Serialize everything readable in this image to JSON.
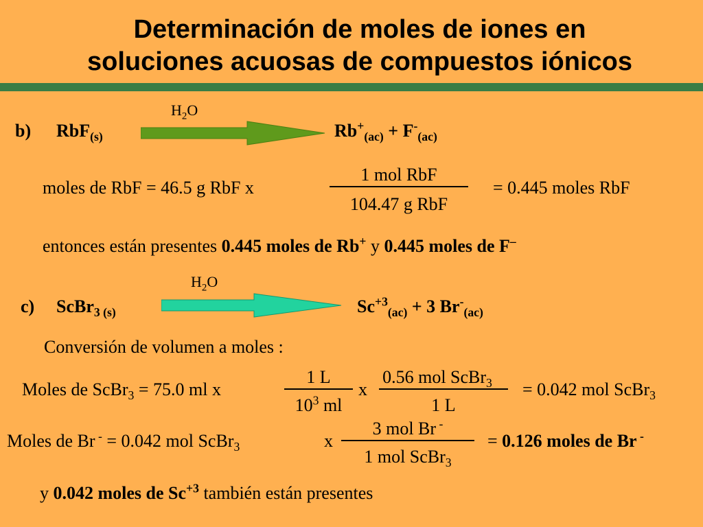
{
  "title": {
    "line1": "Determinación de moles de iones en",
    "line2": "soluciones acuosas de compuestos iónicos"
  },
  "colors": {
    "background": "#ffb050",
    "rule": "#3a7d45",
    "arrow_b": "#5f9a1c",
    "arrow_c": "#22d39e"
  },
  "part_b": {
    "label": "b)",
    "reactant": "RbF",
    "reactant_sub": "(s)",
    "solvent_main": "H",
    "solvent_sub": "2",
    "solvent_end": "O",
    "product1": "Rb",
    "product1_sup": "+",
    "product1_sub": "(ac)",
    "plus": "+ F",
    "product2_sup": "-",
    "product2_sub": "(ac)",
    "calc_left": "moles de RbF = 46.5 g RbF  x",
    "numerator": "1 mol RbF",
    "denominator": "104.47 g RbF",
    "result": "= 0.445 moles RbF",
    "present_pre": "entonces están presentes ",
    "present_b1": "0.445 moles de Rb",
    "present_sup1": "+",
    "present_mid": " y ",
    "present_b2": "0.445 moles de F",
    "present_sup2": "–"
  },
  "part_c": {
    "label": "c)",
    "reactant": "ScBr",
    "reactant_sub": "3 (s)",
    "solvent_main": "H",
    "solvent_sub": "2",
    "solvent_end": "O",
    "product1": "Sc",
    "product1_sup": "+3",
    "product1_sub": "(ac)",
    "plus": "+ 3 Br",
    "product2_sup": "-",
    "product2_sub": "(ac)",
    "conversion": "Conversión de volumen a moles  :",
    "eq1_left_a": "Moles de ScBr",
    "eq1_left_sub": "3",
    "eq1_left_b": " = 75.0 ml x",
    "frac1_num": "1 L",
    "frac1_den_a": "10",
    "frac1_den_sup": "3",
    "frac1_den_b": " ml",
    "times": "x",
    "frac2_num_a": "0.56 mol ScBr",
    "frac2_num_sub": "3",
    "frac2_den": "1 L",
    "eq1_result_a": "= 0.042 mol ScBr",
    "eq1_result_sub": "3",
    "eq2_left_a": "Moles de Br",
    "eq2_left_sup": " -",
    "eq2_left_b": " = 0.042 mol ScBr",
    "eq2_left_sub": "3",
    "eq2_x": "x",
    "frac3_num_a": "3 mol Br",
    "frac3_num_sup": " -",
    "frac3_den_a": "1 mol ScBr",
    "frac3_den_sub": "3",
    "eq2_result_eq": "= ",
    "eq2_result_b": "0.126 moles de Br",
    "eq2_result_sup": " -",
    "final_y": "y ",
    "final_b": "0.042 moles de Sc",
    "final_sup": "+3",
    "final_rest": " también están presentes"
  }
}
